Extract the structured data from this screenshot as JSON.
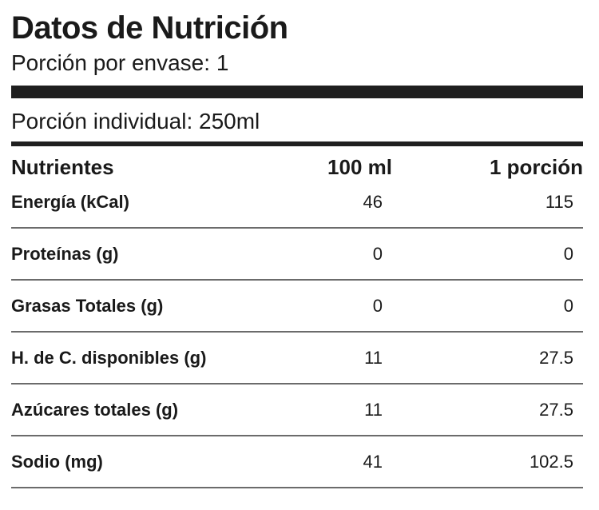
{
  "label": {
    "title": "Datos de Nutrición",
    "servings_per_container": "Porción por envase: 1",
    "serving_size": "Porción individual: 250ml"
  },
  "table": {
    "headers": {
      "nutrient": "Nutrientes",
      "per_100ml": "100 ml",
      "per_portion": "1 porción"
    },
    "rows": [
      {
        "name": "Energía (kCal)",
        "per_100ml": "46",
        "per_portion": "115"
      },
      {
        "name": "Proteínas (g)",
        "per_100ml": "0",
        "per_portion": "0"
      },
      {
        "name": "Grasas Totales (g)",
        "per_100ml": "0",
        "per_portion": "0"
      },
      {
        "name": "H. de C. disponibles (g)",
        "per_100ml": "11",
        "per_portion": "27.5"
      },
      {
        "name": "Azúcares totales (g)",
        "per_100ml": "11",
        "per_portion": "27.5"
      },
      {
        "name": "Sodio (mg)",
        "per_100ml": "41",
        "per_portion": "102.5"
      }
    ]
  },
  "colors": {
    "text": "#1a1a1a",
    "rule_dark": "#1f1f1f",
    "rule_row": "#6b6b6b",
    "background": "#ffffff"
  }
}
